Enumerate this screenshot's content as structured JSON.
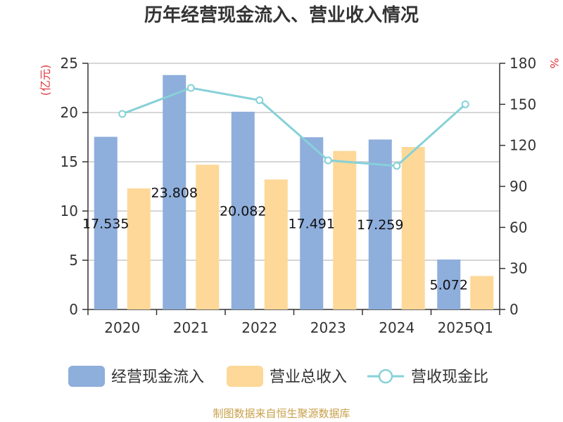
{
  "title": "历年经营现金流入、营业收入情况",
  "source": "制图数据来自恒生聚源数据库",
  "chart_data": {
    "type": "bar",
    "title": "历年经营现金流入、营业收入情况",
    "categories": [
      "2020",
      "2021",
      "2022",
      "2023",
      "2024",
      "2025Q1"
    ],
    "series": [
      {
        "name": "经营现金流入",
        "kind": "bar",
        "axis": "left",
        "color": "#8eaedc",
        "values": [
          17.535,
          23.808,
          20.082,
          17.491,
          17.259,
          5.072
        ],
        "labels": [
          "17.535",
          "23.808",
          "20.082",
          "17.491",
          "17.259",
          "5.072"
        ]
      },
      {
        "name": "营业总收入",
        "kind": "bar",
        "axis": "left",
        "color": "#fdd898",
        "values": [
          12.3,
          14.7,
          13.2,
          16.1,
          16.5,
          3.4
        ]
      },
      {
        "name": "营收现金比",
        "kind": "line",
        "axis": "right",
        "color": "#86d1d8",
        "values": [
          143,
          162,
          153,
          109,
          105,
          150
        ]
      }
    ],
    "y_left": {
      "label": "(亿元)",
      "ylim": [
        0,
        25
      ],
      "ticks": [
        0,
        5,
        10,
        15,
        20,
        25
      ]
    },
    "y_right": {
      "label": "%",
      "ylim": [
        0,
        180
      ],
      "ticks": [
        0,
        30,
        60,
        90,
        120,
        150,
        180
      ]
    },
    "grid": true,
    "legend_position": "bottom"
  }
}
